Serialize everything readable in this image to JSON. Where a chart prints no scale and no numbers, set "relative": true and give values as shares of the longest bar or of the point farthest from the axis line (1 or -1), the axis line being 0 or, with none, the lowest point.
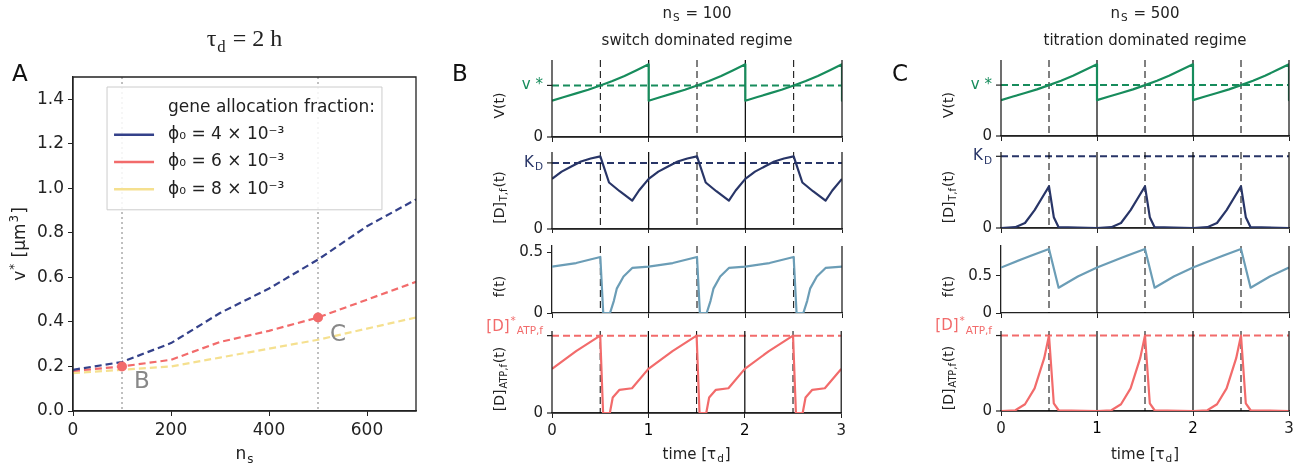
{
  "chart_data": [
    {
      "type": "line",
      "title": "τ$_{d}$ = 2 h",
      "xlabel": "n$_{s}$",
      "ylabel": "v$^{*}$ [μm$^{3}$]",
      "legend_title": "gene allocation fraction:",
      "legend": "top",
      "marker": "none",
      "line_style": "dashed",
      "xlim": [
        0,
        700
      ],
      "xticks": [
        0,
        200,
        400,
        600
      ],
      "ylim": [
        0,
        1.5
      ],
      "yticks": [
        {
          "value": 0,
          "label": "0.0"
        },
        0.2,
        0.4,
        0.6,
        0.8,
        {
          "value": 1,
          "label": "1.0"
        },
        1.2,
        1.4
      ],
      "x": [
        0,
        100,
        200,
        300,
        400,
        500,
        600,
        700
      ],
      "series": [
        {
          "name": "ϕ₀ = 4 × 10⁻³",
          "color": "#34418a",
          "values": [
            0.185,
            0.22,
            0.305,
            0.44,
            0.55,
            0.68,
            0.83,
            0.95
          ]
        },
        {
          "name": "ϕ₀ = 6 × 10⁻³",
          "color": "#f26b6b",
          "values": [
            0.18,
            0.2,
            0.23,
            0.31,
            0.36,
            0.42,
            0.5,
            0.58
          ]
        },
        {
          "name": "ϕ₀ = 8 × 10⁻³",
          "color": "#f5e08f",
          "values": [
            0.17,
            0.185,
            0.2,
            0.24,
            0.28,
            0.32,
            0.37,
            0.42
          ]
        },
        {
          "type": "scatter",
          "marker": "circle",
          "color": "#f26b6b",
          "x": [
            100,
            500
          ],
          "values": [
            0.2,
            0.42
          ]
        }
      ],
      "ref_lines": [
        {
          "axis": "x",
          "value": 100,
          "color": "#808080",
          "line_style": "dotted"
        },
        {
          "axis": "x",
          "value": 500,
          "color": "#808080",
          "line_style": "dotted"
        }
      ],
      "annotations": [
        "A",
        {
          "text": "B",
          "x": 100,
          "y": 0.13
        },
        {
          "text": "C",
          "x": 500,
          "y": 0.34
        }
      ]
    },
    {
      "type": "line",
      "title": "n$_{S}$ = 100",
      "subtitle": "switch dominated regime",
      "ylabel": "V(t)",
      "tick_labels": "y",
      "relative": true,
      "marker": "none",
      "xlim": [
        0,
        3
      ],
      "xticks": [
        0,
        1,
        2,
        3
      ],
      "series": [
        {
          "color": "#178c5c",
          "x": [
            0,
            0.125,
            0.25,
            0.375,
            0.5,
            0.625,
            0.75,
            0.875,
            1,
            1,
            1.125,
            1.25,
            1.375,
            1.5,
            1.625,
            1.75,
            1.875,
            2,
            2,
            2.125,
            2.25,
            2.375,
            2.5,
            2.625,
            2.75,
            2.875,
            3,
            3
          ],
          "values": [
            0.5,
            0.55,
            0.6,
            0.65,
            0.71,
            0.77,
            0.84,
            0.92,
            1,
            0.5,
            0.55,
            0.6,
            0.65,
            0.71,
            0.77,
            0.84,
            0.92,
            1,
            0.5,
            0.55,
            0.6,
            0.65,
            0.71,
            0.77,
            0.84,
            0.92,
            1,
            0.5
          ]
        }
      ],
      "ref_lines": [
        {
          "axis": "y",
          "value": 0,
          "label": "0"
        },
        {
          "axis": "y",
          "value": 0.71,
          "label": "v *",
          "color": "#178c5c",
          "line_style": "dashed"
        },
        {
          "axis": "x",
          "value": 0.5,
          "color": "#000000",
          "line_style": "dashed"
        },
        {
          "axis": "x",
          "value": 1,
          "color": "#000000",
          "line_style": "solid"
        },
        {
          "axis": "x",
          "value": 1.5,
          "color": "#000000",
          "line_style": "dashed"
        },
        {
          "axis": "x",
          "value": 2,
          "color": "#000000",
          "line_style": "solid"
        },
        {
          "axis": "x",
          "value": 2.5,
          "color": "#000000",
          "line_style": "dashed"
        }
      ],
      "annotations": [
        "B"
      ]
    },
    {
      "type": "line",
      "ylabel": "[D]$_{T,f}$(t)",
      "tick_labels": "y",
      "relative": true,
      "marker": "none",
      "xlim": [
        0,
        3
      ],
      "xticks": [
        0,
        1,
        2,
        3
      ],
      "series": [
        {
          "color": "#283567",
          "x": [
            0,
            0.1,
            0.2,
            0.3,
            0.4,
            0.5,
            0.59,
            0.7,
            0.83,
            0.9,
            1,
            1.1,
            1.2,
            1.3,
            1.4,
            1.5,
            1.59,
            1.7,
            1.83,
            1.9,
            2,
            2.1,
            2.2,
            2.3,
            2.4,
            2.5,
            2.59,
            2.7,
            2.83,
            2.9,
            3
          ],
          "values": [
            0.69,
            0.79,
            0.86,
            0.93,
            0.97,
            1,
            0.64,
            0.52,
            0.39,
            0.53,
            0.69,
            0.79,
            0.86,
            0.93,
            0.97,
            1,
            0.64,
            0.52,
            0.39,
            0.53,
            0.69,
            0.79,
            0.86,
            0.93,
            0.97,
            1,
            0.64,
            0.52,
            0.39,
            0.53,
            0.69
          ]
        }
      ],
      "ref_lines": [
        {
          "axis": "y",
          "value": 0,
          "label": "0"
        },
        {
          "axis": "y",
          "value": 0.91,
          "label": "K$_{D}$",
          "color": "#283567",
          "line_style": "dashed"
        },
        {
          "axis": "x",
          "value": 0.5,
          "color": "#000000",
          "line_style": "dashed"
        },
        {
          "axis": "x",
          "value": 1,
          "color": "#000000",
          "line_style": "solid"
        },
        {
          "axis": "x",
          "value": 1.5,
          "color": "#000000",
          "line_style": "dashed"
        },
        {
          "axis": "x",
          "value": 2,
          "color": "#000000",
          "line_style": "solid"
        },
        {
          "axis": "x",
          "value": 2.5,
          "color": "#000000",
          "line_style": "dashed"
        }
      ]
    },
    {
      "type": "line",
      "ylabel": "f(t)",
      "tick_labels": "y",
      "marker": "none",
      "xlim": [
        0,
        3
      ],
      "xticks": [
        0,
        1,
        2,
        3
      ],
      "ylim": [
        0,
        0.55
      ],
      "yticks": [
        0,
        0.5
      ],
      "series": [
        {
          "color": "#6b9db6",
          "x": [
            0,
            0.25,
            0.5,
            0.53,
            0.6,
            0.64,
            0.67,
            0.74,
            0.83,
            1,
            1.25,
            1.5,
            1.53,
            1.6,
            1.64,
            1.67,
            1.74,
            1.83,
            2,
            2.25,
            2.5,
            2.53,
            2.6,
            2.64,
            2.67,
            2.74,
            2.83,
            3
          ],
          "values": [
            0.38,
            0.41,
            0.46,
            0,
            0,
            0.1,
            0.2,
            0.3,
            0.37,
            0.38,
            0.41,
            0.46,
            0,
            0,
            0.1,
            0.2,
            0.3,
            0.37,
            0.38,
            0.41,
            0.46,
            0,
            0,
            0.1,
            0.2,
            0.3,
            0.37,
            0.38
          ]
        }
      ],
      "ref_lines": [
        {
          "axis": "x",
          "value": 0.5,
          "color": "#000000",
          "line_style": "dashed"
        },
        {
          "axis": "x",
          "value": 1,
          "color": "#000000",
          "line_style": "solid"
        },
        {
          "axis": "x",
          "value": 1.5,
          "color": "#000000",
          "line_style": "dashed"
        },
        {
          "axis": "x",
          "value": 2,
          "color": "#000000",
          "line_style": "solid"
        },
        {
          "axis": "x",
          "value": 2.5,
          "color": "#000000",
          "line_style": "dashed"
        }
      ]
    },
    {
      "type": "line",
      "xlabel": "time [τ$_{d}$]",
      "ylabel": "[D]$_{ATP,f}$(t)",
      "relative": true,
      "marker": "none",
      "xlim": [
        0,
        3
      ],
      "xticks": [
        0,
        1,
        2,
        3
      ],
      "series": [
        {
          "color": "#f26b6b",
          "x": [
            0,
            0.25,
            0.5,
            0.53,
            0.6,
            0.63,
            0.7,
            0.83,
            1,
            1.25,
            1.5,
            1.53,
            1.6,
            1.63,
            1.7,
            1.83,
            2,
            2.25,
            2.5,
            2.53,
            2.6,
            2.63,
            2.7,
            2.83,
            3
          ],
          "values": [
            0.57,
            0.8,
            1,
            0,
            0,
            0.2,
            0.3,
            0.32,
            0.57,
            0.8,
            1,
            0,
            0,
            0.2,
            0.3,
            0.32,
            0.57,
            0.8,
            1,
            0,
            0,
            0.2,
            0.3,
            0.32,
            0.57
          ]
        }
      ],
      "ref_lines": [
        {
          "axis": "y",
          "value": 0,
          "label": "0"
        },
        {
          "axis": "y",
          "value": 1,
          "label": "[D]$^{*}$$_{ATP,f}$",
          "color": "#f26b6b",
          "line_style": "dashed"
        },
        {
          "axis": "x",
          "value": 0.5,
          "color": "#000000",
          "line_style": "dashed"
        },
        {
          "axis": "x",
          "value": 1,
          "color": "#000000",
          "line_style": "solid"
        },
        {
          "axis": "x",
          "value": 1.5,
          "color": "#000000",
          "line_style": "dashed"
        },
        {
          "axis": "x",
          "value": 2,
          "color": "#000000",
          "line_style": "solid"
        },
        {
          "axis": "x",
          "value": 2.5,
          "color": "#000000",
          "line_style": "dashed"
        }
      ]
    },
    {
      "type": "line",
      "title": "n$_{S}$ = 500",
      "subtitle": "titration dominated regime",
      "ylabel": "V(t)",
      "tick_labels": "y",
      "relative": true,
      "marker": "none",
      "xlim": [
        0,
        3
      ],
      "xticks": [
        0,
        1,
        2,
        3
      ],
      "series": [
        {
          "color": "#178c5c",
          "x": [
            0,
            0.125,
            0.25,
            0.375,
            0.5,
            0.625,
            0.75,
            0.875,
            1,
            1,
            1.125,
            1.25,
            1.375,
            1.5,
            1.625,
            1.75,
            1.875,
            2,
            2,
            2.125,
            2.25,
            2.375,
            2.5,
            2.625,
            2.75,
            2.875,
            3,
            3
          ],
          "values": [
            0.5,
            0.55,
            0.6,
            0.65,
            0.71,
            0.77,
            0.84,
            0.92,
            1,
            0.5,
            0.55,
            0.6,
            0.65,
            0.71,
            0.77,
            0.84,
            0.92,
            1,
            0.5,
            0.55,
            0.6,
            0.65,
            0.71,
            0.77,
            0.84,
            0.92,
            1,
            0.5
          ]
        }
      ],
      "ref_lines": [
        {
          "axis": "y",
          "value": 0,
          "label": "0"
        },
        {
          "axis": "y",
          "value": 0.71,
          "label": "v *",
          "color": "#178c5c",
          "line_style": "dashed"
        },
        {
          "axis": "x",
          "value": 0.5,
          "color": "#000000",
          "line_style": "dashed"
        },
        {
          "axis": "x",
          "value": 1,
          "color": "#000000",
          "line_style": "solid"
        },
        {
          "axis": "x",
          "value": 1.5,
          "color": "#000000",
          "line_style": "dashed"
        },
        {
          "axis": "x",
          "value": 2,
          "color": "#000000",
          "line_style": "solid"
        },
        {
          "axis": "x",
          "value": 2.5,
          "color": "#000000",
          "line_style": "dashed"
        }
      ],
      "annotations": [
        "C"
      ]
    },
    {
      "type": "line",
      "ylabel": "[D]$_{T,f}$(t)",
      "tick_labels": "y",
      "relative": true,
      "marker": "none",
      "xlim": [
        0,
        3
      ],
      "xticks": [
        0,
        1,
        2,
        3
      ],
      "series": [
        {
          "color": "#283567",
          "x": [
            0,
            0.15,
            0.25,
            0.35,
            0.45,
            0.5,
            0.55,
            0.6,
            1,
            1.15,
            1.25,
            1.35,
            1.45,
            1.5,
            1.55,
            1.6,
            2,
            2.15,
            2.25,
            2.35,
            2.45,
            2.5,
            2.55,
            2.6,
            3
          ],
          "values": [
            0,
            0.02,
            0.12,
            0.43,
            0.81,
            1,
            0.26,
            0.02,
            0,
            0.02,
            0.12,
            0.43,
            0.81,
            1,
            0.26,
            0.02,
            0,
            0.02,
            0.12,
            0.43,
            0.81,
            1,
            0.26,
            0.02,
            0
          ]
        }
      ],
      "ref_lines": [
        {
          "axis": "y",
          "value": 0,
          "label": "0"
        },
        {
          "axis": "y",
          "value": 1.72,
          "label": "K$_{D}$",
          "color": "#283567",
          "line_style": "dashed"
        },
        {
          "axis": "x",
          "value": 0.5,
          "color": "#000000",
          "line_style": "dashed"
        },
        {
          "axis": "x",
          "value": 1,
          "color": "#000000",
          "line_style": "solid"
        },
        {
          "axis": "x",
          "value": 1.5,
          "color": "#000000",
          "line_style": "dashed"
        },
        {
          "axis": "x",
          "value": 2,
          "color": "#000000",
          "line_style": "solid"
        },
        {
          "axis": "x",
          "value": 2.5,
          "color": "#000000",
          "line_style": "dashed"
        }
      ]
    },
    {
      "type": "line",
      "ylabel": "f(t)",
      "tick_labels": "y",
      "marker": "none",
      "xlim": [
        0,
        3
      ],
      "xticks": [
        0,
        1,
        2,
        3
      ],
      "ylim": [
        0,
        0.9
      ],
      "yticks": [
        0,
        0.5
      ],
      "series": [
        {
          "color": "#6b9db6",
          "x": [
            0,
            0.25,
            0.5,
            0.6,
            0.8,
            1,
            1.25,
            1.5,
            1.6,
            1.8,
            2,
            2.25,
            2.5,
            2.6,
            2.8,
            3
          ],
          "values": [
            0.61,
            0.74,
            0.86,
            0.34,
            0.49,
            0.61,
            0.74,
            0.86,
            0.34,
            0.49,
            0.61,
            0.74,
            0.86,
            0.34,
            0.49,
            0.61
          ]
        }
      ],
      "ref_lines": [
        {
          "axis": "x",
          "value": 0.5,
          "color": "#000000",
          "line_style": "dashed"
        },
        {
          "axis": "x",
          "value": 1,
          "color": "#000000",
          "line_style": "solid"
        },
        {
          "axis": "x",
          "value": 1.5,
          "color": "#000000",
          "line_style": "dashed"
        },
        {
          "axis": "x",
          "value": 2,
          "color": "#000000",
          "line_style": "solid"
        },
        {
          "axis": "x",
          "value": 2.5,
          "color": "#000000",
          "line_style": "dashed"
        }
      ]
    },
    {
      "type": "line",
      "xlabel": "time [τ$_{d}$]",
      "ylabel": "[D]$_{ATP,f}$(t)",
      "relative": true,
      "marker": "none",
      "xlim": [
        0,
        3
      ],
      "xticks": [
        0,
        1,
        2,
        3
      ],
      "series": [
        {
          "color": "#f26b6b",
          "x": [
            0,
            0.15,
            0.25,
            0.35,
            0.45,
            0.5,
            0.55,
            0.6,
            1,
            1.15,
            1.25,
            1.35,
            1.45,
            1.5,
            1.55,
            1.6,
            2,
            2.15,
            2.25,
            2.35,
            2.45,
            2.5,
            2.55,
            2.6,
            3
          ],
          "values": [
            0,
            0.01,
            0.09,
            0.3,
            0.7,
            1,
            0.1,
            0.01,
            0,
            0.01,
            0.09,
            0.3,
            0.7,
            1,
            0.1,
            0.01,
            0,
            0.01,
            0.09,
            0.3,
            0.7,
            1,
            0.1,
            0.01,
            0
          ]
        }
      ],
      "ref_lines": [
        {
          "axis": "y",
          "value": 0,
          "label": "0"
        },
        {
          "axis": "y",
          "value": 1,
          "label": "[D]$^{*}$$_{ATP,f}$",
          "color": "#f26b6b",
          "line_style": "dashed"
        },
        {
          "axis": "x",
          "value": 0.5,
          "color": "#000000",
          "line_style": "dashed"
        },
        {
          "axis": "x",
          "value": 1,
          "color": "#000000",
          "line_style": "solid"
        },
        {
          "axis": "x",
          "value": 1.5,
          "color": "#000000",
          "line_style": "dashed"
        },
        {
          "axis": "x",
          "value": 2,
          "color": "#000000",
          "line_style": "solid"
        },
        {
          "axis": "x",
          "value": 2.5,
          "color": "#000000",
          "line_style": "dashed"
        }
      ]
    }
  ]
}
